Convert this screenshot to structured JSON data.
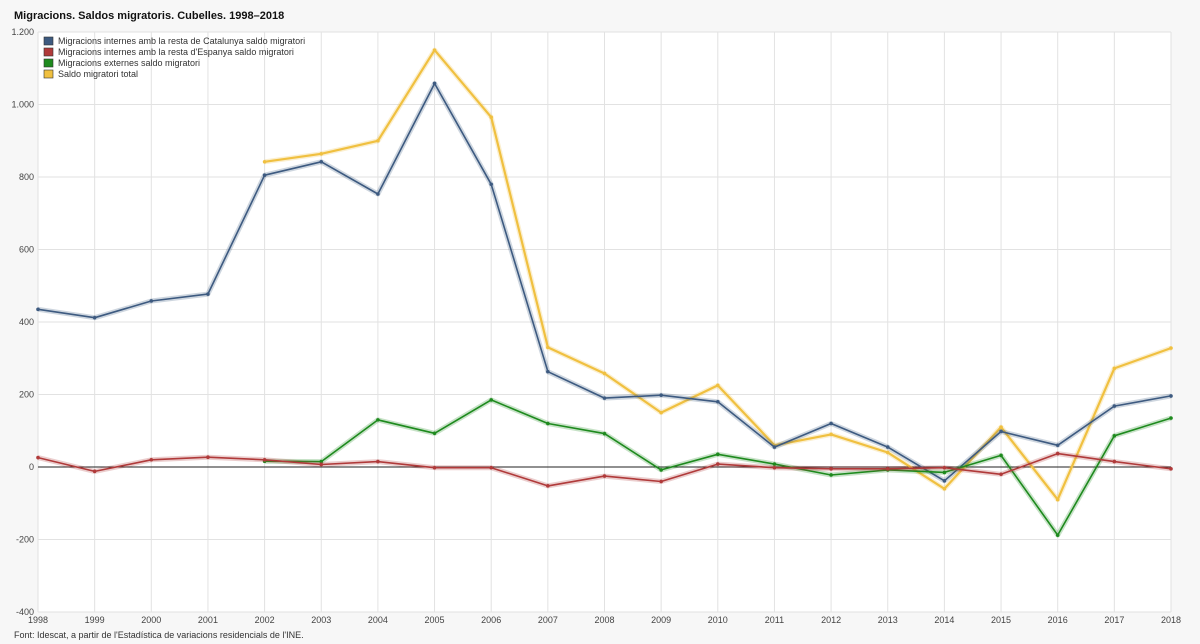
{
  "page": {
    "title": "Migracions. Saldos migratoris. Cubelles. 1998–2018",
    "source": "Font: Idescat, a partir de l'Estadística de variacions residencials de l'INE."
  },
  "chart_data": {
    "type": "line",
    "title": "Migracions. Saldos migratoris. Cubelles. 1998–2018",
    "xlabel": "",
    "ylabel": "",
    "ylim": [
      -400,
      1200
    ],
    "yticks": [
      -400,
      -200,
      0,
      200,
      400,
      600,
      800,
      1000,
      1200
    ],
    "ytick_labels": [
      "-400",
      "-200",
      "0",
      "200",
      "400",
      "600",
      "800",
      "1.000",
      "1.200"
    ],
    "x": [
      "1998",
      "1999",
      "2000",
      "2001",
      "2002",
      "2003",
      "2004",
      "2005",
      "2006",
      "2007",
      "2008",
      "2009",
      "2010",
      "2011",
      "2012",
      "2013",
      "2014",
      "2015",
      "2016",
      "2017",
      "2018"
    ],
    "grid": true,
    "legend_position": "top-left",
    "series": [
      {
        "name": "Migracions internes amb la resta de Catalunya saldo migratori",
        "color": "#3d5a80",
        "values": [
          435,
          412,
          458,
          477,
          805,
          842,
          753,
          1058,
          780,
          263,
          190,
          198,
          180,
          55,
          120,
          55,
          -38,
          98,
          60,
          168,
          196
        ]
      },
      {
        "name": "Migracions internes amb la resta d'Espanya saldo migratori",
        "color": "#b03a3a",
        "values": [
          26,
          -12,
          20,
          27,
          20,
          7,
          15,
          -2,
          -2,
          -52,
          -25,
          -40,
          8,
          -2,
          -5,
          -5,
          -2,
          -20,
          37,
          15,
          -5
        ]
      },
      {
        "name": "Migracions externes saldo migratori",
        "color": "#1e8a1e",
        "values": [
          null,
          null,
          null,
          null,
          16,
          15,
          130,
          93,
          185,
          120,
          92,
          -8,
          35,
          8,
          -22,
          -8,
          -15,
          32,
          -188,
          86,
          135
        ]
      },
      {
        "name": "Saldo migratori total",
        "color": "#f0c040",
        "values": [
          null,
          null,
          null,
          null,
          842,
          864,
          900,
          1150,
          965,
          330,
          258,
          150,
          225,
          60,
          90,
          40,
          -60,
          110,
          -90,
          272,
          328
        ]
      }
    ]
  }
}
